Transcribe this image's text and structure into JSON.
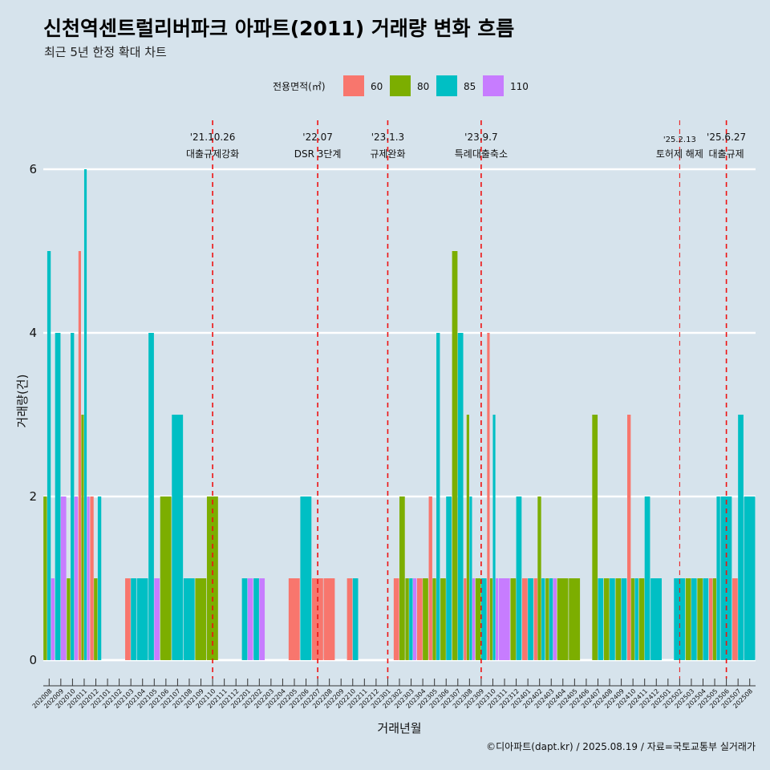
{
  "title": "신천역센트럴리버파크 아파트(2011) 거래량 변화 흐름",
  "subtitle": "최근 5년 한정 확대 차트",
  "caption": "©디아파트(dapt.kr) / 2025.08.19 / 자료=국토교통부 실거래가",
  "chart_data": {
    "type": "bar",
    "xlabel": "거래년월",
    "ylabel": "거래량(건)",
    "ylim": [
      0,
      6
    ],
    "yticks": [
      0,
      2,
      4,
      6
    ],
    "legend": {
      "title": "전용면적(㎡)",
      "position": "top",
      "entries": [
        {
          "name": "60",
          "color": "#f8766d"
        },
        {
          "name": "80",
          "color": "#7cae00"
        },
        {
          "name": "85",
          "color": "#00bfc4"
        },
        {
          "name": "110",
          "color": "#c77cff"
        }
      ]
    },
    "categories": [
      "202008",
      "202009",
      "202010",
      "202011",
      "202012",
      "202101",
      "202102",
      "202103",
      "202104",
      "202105",
      "202106",
      "202107",
      "202108",
      "202109",
      "202110",
      "202111",
      "202112",
      "202201",
      "202202",
      "202203",
      "202204",
      "202205",
      "202206",
      "202207",
      "202208",
      "202209",
      "202210",
      "202211",
      "202212",
      "202301",
      "202302",
      "202303",
      "202304",
      "202305",
      "202306",
      "202307",
      "202308",
      "202309",
      "202310",
      "202311",
      "202312",
      "202401",
      "202402",
      "202403",
      "202404",
      "202405",
      "202406",
      "202407",
      "202408",
      "202409",
      "202410",
      "202411",
      "202412",
      "202501",
      "202502",
      "202503",
      "202504",
      "202505",
      "202506",
      "202507",
      "202508"
    ],
    "bars": [
      {
        "month": "202008",
        "groups": [
          {
            "area": "80",
            "value": 2
          },
          {
            "area": "85",
            "value": 5
          },
          {
            "area": "110",
            "value": 1
          }
        ]
      },
      {
        "month": "202009",
        "groups": [
          {
            "area": "85",
            "value": 4
          },
          {
            "area": "110",
            "value": 2
          }
        ]
      },
      {
        "month": "202010",
        "groups": [
          {
            "area": "80",
            "value": 1
          },
          {
            "area": "85",
            "value": 4
          },
          {
            "area": "110",
            "value": 2
          }
        ]
      },
      {
        "month": "202011",
        "groups": [
          {
            "area": "60",
            "value": 5
          },
          {
            "area": "80",
            "value": 3
          },
          {
            "area": "85",
            "value": 6
          },
          {
            "area": "110",
            "value": 2
          }
        ]
      },
      {
        "month": "202012",
        "groups": [
          {
            "area": "60",
            "value": 2
          },
          {
            "area": "80",
            "value": 1
          },
          {
            "area": "85",
            "value": 2
          }
        ]
      },
      {
        "month": "202103",
        "groups": [
          {
            "area": "60",
            "value": 1
          },
          {
            "area": "85",
            "value": 1
          }
        ]
      },
      {
        "month": "202104",
        "groups": [
          {
            "area": "85",
            "value": 1
          }
        ]
      },
      {
        "month": "202105",
        "groups": [
          {
            "area": "85",
            "value": 4
          },
          {
            "area": "110",
            "value": 1
          }
        ]
      },
      {
        "month": "202106",
        "groups": [
          {
            "area": "80",
            "value": 2
          }
        ]
      },
      {
        "month": "202107",
        "groups": [
          {
            "area": "85",
            "value": 3
          }
        ]
      },
      {
        "month": "202108",
        "groups": [
          {
            "area": "85",
            "value": 1
          }
        ]
      },
      {
        "month": "202109",
        "groups": [
          {
            "area": "80",
            "value": 1
          }
        ]
      },
      {
        "month": "202110",
        "groups": [
          {
            "area": "80",
            "value": 2
          }
        ]
      },
      {
        "month": "202201",
        "groups": [
          {
            "area": "85",
            "value": 1
          },
          {
            "area": "110",
            "value": 1
          }
        ]
      },
      {
        "month": "202202",
        "groups": [
          {
            "area": "85",
            "value": 1
          },
          {
            "area": "110",
            "value": 1
          }
        ]
      },
      {
        "month": "202205",
        "groups": [
          {
            "area": "60",
            "value": 1
          }
        ]
      },
      {
        "month": "202206",
        "groups": [
          {
            "area": "85",
            "value": 2
          }
        ]
      },
      {
        "month": "202207",
        "groups": [
          {
            "area": "60",
            "value": 1
          }
        ]
      },
      {
        "month": "202208",
        "groups": [
          {
            "area": "60",
            "value": 1
          }
        ]
      },
      {
        "month": "202210",
        "groups": [
          {
            "area": "60",
            "value": 1
          },
          {
            "area": "85",
            "value": 1
          }
        ]
      },
      {
        "month": "202302",
        "groups": [
          {
            "area": "60",
            "value": 1
          },
          {
            "area": "80",
            "value": 2
          }
        ]
      },
      {
        "month": "202303",
        "groups": [
          {
            "area": "80",
            "value": 1
          },
          {
            "area": "85",
            "value": 1
          },
          {
            "area": "110",
            "value": 1
          }
        ]
      },
      {
        "month": "202304",
        "groups": [
          {
            "area": "60",
            "value": 1
          },
          {
            "area": "80",
            "value": 1
          }
        ]
      },
      {
        "month": "202305",
        "groups": [
          {
            "area": "60",
            "value": 2
          },
          {
            "area": "80",
            "value": 1
          },
          {
            "area": "85",
            "value": 4
          }
        ]
      },
      {
        "month": "202306",
        "groups": [
          {
            "area": "80",
            "value": 1
          },
          {
            "area": "85",
            "value": 2
          }
        ]
      },
      {
        "month": "202307",
        "groups": [
          {
            "area": "80",
            "value": 5
          },
          {
            "area": "85",
            "value": 4
          }
        ]
      },
      {
        "month": "202308",
        "groups": [
          {
            "area": "60",
            "value": 1
          },
          {
            "area": "80",
            "value": 3
          },
          {
            "area": "85",
            "value": 2
          },
          {
            "area": "110",
            "value": 1
          }
        ]
      },
      {
        "month": "202309",
        "groups": [
          {
            "area": "80",
            "value": 1
          },
          {
            "area": "85",
            "value": 1
          }
        ]
      },
      {
        "month": "202310",
        "groups": [
          {
            "area": "60",
            "value": 4
          },
          {
            "area": "80",
            "value": 1
          },
          {
            "area": "85",
            "value": 3
          },
          {
            "area": "110",
            "value": 1
          }
        ]
      },
      {
        "month": "202311",
        "groups": [
          {
            "area": "110",
            "value": 1
          }
        ]
      },
      {
        "month": "202312",
        "groups": [
          {
            "area": "80",
            "value": 1
          },
          {
            "area": "85",
            "value": 2
          }
        ]
      },
      {
        "month": "202401",
        "groups": [
          {
            "area": "60",
            "value": 1
          },
          {
            "area": "85",
            "value": 1
          }
        ]
      },
      {
        "month": "202402",
        "groups": [
          {
            "area": "60",
            "value": 1
          },
          {
            "area": "80",
            "value": 2
          },
          {
            "area": "85",
            "value": 1
          }
        ]
      },
      {
        "month": "202403",
        "groups": [
          {
            "area": "80",
            "value": 1
          },
          {
            "area": "85",
            "value": 1
          },
          {
            "area": "110",
            "value": 1
          }
        ]
      },
      {
        "month": "202404",
        "groups": [
          {
            "area": "80",
            "value": 1
          }
        ]
      },
      {
        "month": "202405",
        "groups": [
          {
            "area": "80",
            "value": 1
          }
        ]
      },
      {
        "month": "202407",
        "groups": [
          {
            "area": "80",
            "value": 3
          },
          {
            "area": "85",
            "value": 1
          }
        ]
      },
      {
        "month": "202408",
        "groups": [
          {
            "area": "80",
            "value": 1
          },
          {
            "area": "85",
            "value": 1
          }
        ]
      },
      {
        "month": "202409",
        "groups": [
          {
            "area": "80",
            "value": 1
          },
          {
            "area": "85",
            "value": 1
          }
        ]
      },
      {
        "month": "202410",
        "groups": [
          {
            "area": "60",
            "value": 3
          },
          {
            "area": "80",
            "value": 1
          },
          {
            "area": "85",
            "value": 1
          }
        ]
      },
      {
        "month": "202411",
        "groups": [
          {
            "area": "80",
            "value": 1
          },
          {
            "area": "85",
            "value": 2
          }
        ]
      },
      {
        "month": "202412",
        "groups": [
          {
            "area": "85",
            "value": 1
          }
        ]
      },
      {
        "month": "202502",
        "groups": [
          {
            "area": "85",
            "value": 1
          }
        ]
      },
      {
        "month": "202503",
        "groups": [
          {
            "area": "80",
            "value": 1
          },
          {
            "area": "85",
            "value": 1
          }
        ]
      },
      {
        "month": "202504",
        "groups": [
          {
            "area": "80",
            "value": 1
          },
          {
            "area": "85",
            "value": 1
          }
        ]
      },
      {
        "month": "202505",
        "groups": [
          {
            "area": "60",
            "value": 1
          },
          {
            "area": "80",
            "value": 1
          },
          {
            "area": "85",
            "value": 2
          }
        ]
      },
      {
        "month": "202506",
        "groups": [
          {
            "area": "85",
            "value": 2
          }
        ]
      },
      {
        "month": "202507",
        "groups": [
          {
            "area": "60",
            "value": 1
          },
          {
            "area": "85",
            "value": 3
          }
        ]
      },
      {
        "month": "202508",
        "groups": [
          {
            "area": "85",
            "value": 2
          }
        ]
      }
    ],
    "events": [
      {
        "month": "202110",
        "date": "'21.10.26",
        "label": "대출규제강화"
      },
      {
        "month": "202207",
        "date": "'22.07",
        "label": "DSR 3단계"
      },
      {
        "month": "202301",
        "date": "'23.1.3",
        "label": "규제완화"
      },
      {
        "month": "202309",
        "date": "'23.9.7",
        "label": "특례대출축소"
      },
      {
        "month": "202502",
        "date": "'25.2.13",
        "label": "토허제 해제",
        "small": true
      },
      {
        "month": "202506",
        "date": "'25.6.27",
        "label": "대출규제"
      }
    ]
  }
}
